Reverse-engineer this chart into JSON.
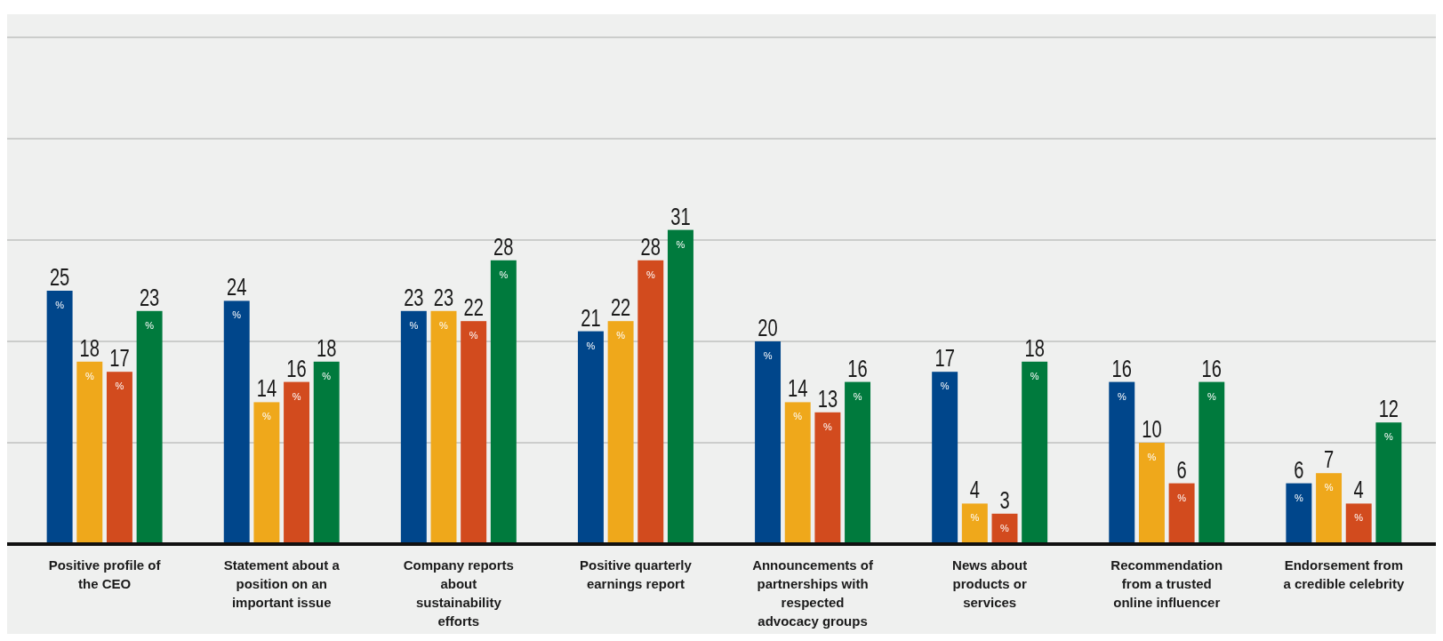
{
  "chart_data": {
    "type": "bar",
    "categories": [
      "Positive profile of the CEO",
      "Statement about a position on an important issue",
      "Company reports about sustainability efforts",
      "Positive quarterly earnings report",
      "Announcements of partnerships with respected advocacy groups",
      "News about products or services",
      "Recommendation from a trusted online influencer",
      "Endorsement from a credible celebrity"
    ],
    "series": [
      {
        "color": "#00468b",
        "values": [
          25,
          24,
          23,
          21,
          20,
          17,
          16,
          6
        ]
      },
      {
        "color": "#efa81b",
        "values": [
          18,
          14,
          23,
          22,
          14,
          4,
          10,
          7
        ]
      },
      {
        "color": "#d24b1e",
        "values": [
          17,
          16,
          22,
          28,
          13,
          3,
          6,
          4
        ]
      },
      {
        "color": "#007a3d",
        "values": [
          23,
          18,
          28,
          31,
          16,
          18,
          16,
          12
        ]
      }
    ],
    "ylim": [
      0,
      50
    ],
    "yticks": [
      {
        "value": 0,
        "label": null
      },
      {
        "value": 10,
        "label": null
      },
      {
        "value": 20,
        "label": null
      },
      {
        "value": 30,
        "label": null
      },
      {
        "value": 40,
        "label": null
      },
      {
        "value": 50,
        "label": null
      }
    ],
    "grid": "y",
    "data_labels": true,
    "annotations": [
      "%"
    ]
  }
}
